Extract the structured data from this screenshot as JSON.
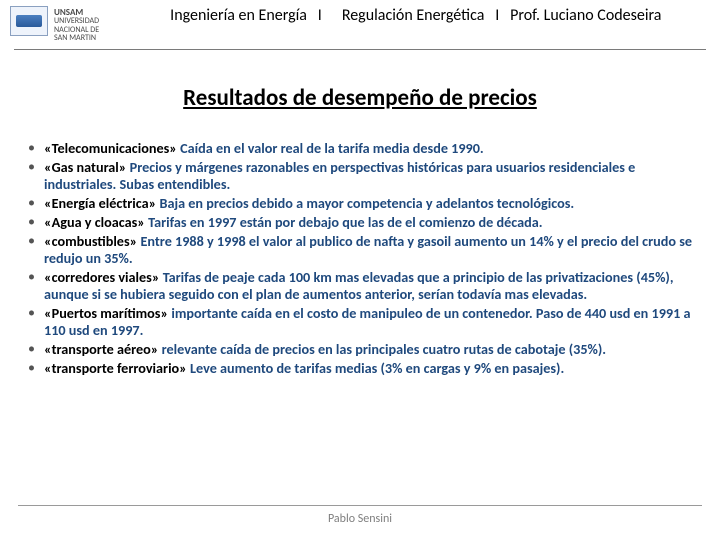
{
  "colors": {
    "accent": "#1f497d",
    "text": "#000000",
    "muted": "#7f7f7f",
    "rule": "#7a7a7a",
    "background": "#ffffff"
  },
  "typography": {
    "header_fontsize_pt": 12,
    "title_fontsize_pt": 17,
    "body_fontsize_pt": 10.5,
    "footer_fontsize_pt": 9,
    "body_weight": 700,
    "title_weight": 700
  },
  "header": {
    "university": "UNSAM",
    "university_sub": "UNIVERSIDAD NACIONAL DE SAN MARTIN",
    "left": "Ingeniería en Energía   I",
    "right": "Regulación Energética   I   Prof. Luciano Codeseira"
  },
  "title": "Resultados de desempeño de precios",
  "items": [
    {
      "label": "«Telecomunicaciones»",
      "body": "Caída en el valor real de la tarifa media desde 1990."
    },
    {
      "label": "«Gas natural»",
      "body": "Precios y márgenes razonables en perspectivas históricas para usuarios residenciales e industriales. Subas entendibles."
    },
    {
      "label": "«Energía eléctrica»",
      "body": "Baja en precios debido a mayor competencia y adelantos tecnológicos."
    },
    {
      "label": "«Agua y cloacas»",
      "body": " Tarifas en 1997 están por debajo que las de el comienzo de década."
    },
    {
      "label": "«combustibles»",
      "body": "Entre 1988 y 1998 el valor al publico de nafta y gasoil aumento un 14% y el precio del crudo se redujo un 35%."
    },
    {
      "label": "«corredores viales»",
      "body": "Tarifas de peaje cada 100 km mas elevadas que a principio de las privatizaciones (45%), aunque si se hubiera seguido con el plan de aumentos anterior, serían todavía mas elevadas."
    },
    {
      "label": "«Puertos marítimos»",
      "body": "importante caída en el costo de manipuleo de un contenedor. Paso de 440 usd en 1991 a 110 usd en 1997."
    },
    {
      "label": "«transporte aéreo»",
      "body": "relevante caída de precios en las principales cuatro rutas de cabotaje (35%)."
    },
    {
      "label": "«transporte ferroviario»",
      "body": "Leve aumento de tarifas medias (3% en cargas y 9% en pasajes)."
    }
  ],
  "footer": "Pablo Sensini"
}
